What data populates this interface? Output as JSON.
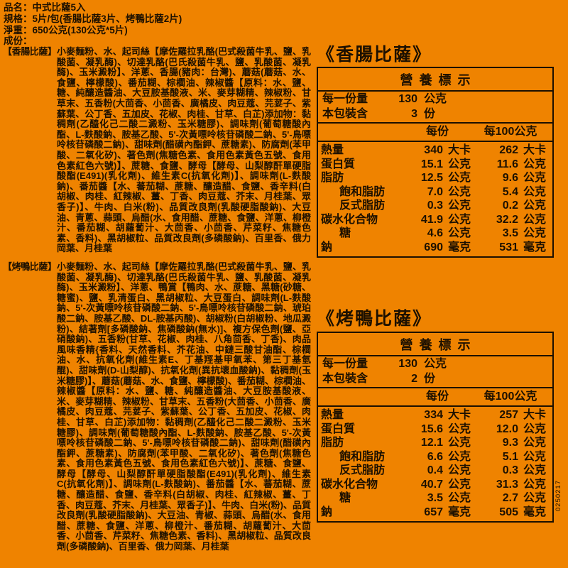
{
  "colors": {
    "background": "#EF8300",
    "ink": "#1C1000"
  },
  "header": {
    "product": "品名：中式比薩5入",
    "spec": "規格：5片/包(香腸比薩3片、烤鴨比薩2片)",
    "net_weight": "淨重：650公克(130公克*5片)",
    "ingredients_heading": "成份："
  },
  "ingredients": [
    {
      "name": "【香腸比薩】",
      "text": "小麥麵粉、水、起司絲【摩佐羅拉乳酪(巴式殺菌牛乳、鹽、乳酸菌、凝乳酶)、切達乳酪(巴氏殺菌牛乳、鹽、乳酸菌、凝乳酶)、玉米澱粉】、洋蔥、香腸(豬肉：台灣)、蘑菇(蘑菇、水、食鹽、檸檬酸)、番茄糊、棕櫚油、辣椒醬【原料：水、鹽、糖、純釀造醬油、大豆胺基酸液、米、麥芽糊精、辣椒粉、甘草末、五香粉(大茴香、小茴香、廣橘皮、肉豆蔻、芫荽子、紫蘇葉、公丁香、五加皮、花椒、肉桂、甘草、白芷)添加物：黏稠劑(乙醯化己二酸二澱粉、玉米糖膠)、調味劑(葡萄糖酸內酯、L-麩酸鈉、胺基乙酸、5'-次黃嘌呤核苷磷酸二鈉、5'-鳥嘌呤核苷磷酸二鈉)、甜味劑(醋磺內酯鉀、蔗糖素)、防腐劑(苯甲酸、二氧化矽)、著色劑(焦糖色素、食用色素黃色五號、食用色素紅色六號)】、蔗糖、食鹽、酵母【酵母、山梨醇酐單硬脂酸酯(E491)(乳化劑)、維生素C(抗氧化劑)】、調味劑(L-麩酸鈉)、番茄醬【水、蕃茄糊、蔗糖、釀造醋、食鹽、香辛料(白胡椒、肉桂、紅辣椒、薑、丁香、肉豆蔻、芥末、月桂葉、眾香子)】、牛肉、白米(粉)、品質改良劑(乳酸硬脂酸鈉)、大豆油、青蔥、蒜頭、烏醋(水、食用醋、蔗糖、食鹽、洋蔥、柳橙汁、番茄糊、胡蘿蔔汁、大茴香、小茴香、芹菜籽、焦糖色素、香料)、黑胡椒粒、品質改良劑(多磷酸鈉)、百里香、俄力岡葉、月桂葉"
    },
    {
      "name": "【烤鴨比薩】",
      "text": "小麥麵粉、水、起司絲【摩佐羅拉乳酪(巴式殺菌牛乳、鹽、乳酸菌、凝乳酶)、切達乳酪(巴氏殺菌牛乳、鹽、乳酸菌、凝乳酶)、玉米澱粉】、洋蔥、鴨賞【鴨肉、水、蔗糖、黑糖(砂糖、糖蜜)、鹽、乳清蛋白、黑胡椒粒、大豆蛋白、調味劑(L-麩酸鈉、5'-次黃嘌呤核苷磷酸二鈉、5'-鳥嘌呤核苷磷酸二鈉、琥珀酸二鈉、胺基乙酸、DL-胺基丙酸)、胡椒粉(白胡椒粉、地瓜澱粉)、結著劑[多磷酸鈉、焦磷酸鈉(無水)]、複方保色劑(鹽、亞硝酸鈉)、五香粉(甘草、花椒、肉桂、八角茴香、丁香)、肉品風味香精{香料、天然香料、芥花油、中鏈三酸甘油酯、棕櫚油、水、抗氧化劑(維生素E、丁基羥基甲氧苯、第三丁基氫醌)、甜味劑(D-山梨醇)、抗氧化劑(異抗壞血酸鈉)、黏稠劑(玉米糖膠)】、蘑菇(蘑菇、水、食鹽、檸檬酸)、番茄糊、棕櫚油、辣椒醬【原料：水、鹽、糖、純釀造醬油、大豆胺基酸液、米、麥芽糊精、辣椒粉、甘草末、五香粉(大茴香、小茴香、廣橘皮、肉豆蔻、芫荽子、紫蘇葉、公丁香、五加皮、花椒、肉桂、甘草、白芷)添加物：黏稠劑(乙醯化己二酸二澱粉、玉米糖膠)、調味劑(葡萄糖酸內酯、L-麩酸鈉、胺基乙酸、5'-次黃嘌呤核苷磷酸二鈉、5'-鳥嘌呤核苷磷酸二鈉)、甜味劑(醋磺內酯鉀、蔗糖素)、防腐劑(苯甲酸、二氧化矽)、著色劑(焦糖色素、食用色素黃色五號、食用色素紅色六號)】、蔗糖、食鹽、酵母【酵母、山梨醇酐單硬脂酸酯(E491)(乳化劑)、維生素C(抗氧化劑)】、調味劑(L-麩酸鈉)、番茄醬【水、蕃茄糊、蔗糖、釀造醋、食鹽、香辛料(白胡椒、肉桂、紅辣椒、薑、丁香、肉豆蔻、芥末、月桂葉、眾香子)】、牛肉、白米(粉)、品質改良劑(乳酸硬脂酸鈉)、大豆油、青椒、蒜頭、烏醋(水、食用醋、蔗糖、食鹽、洋蔥、柳橙汁、番茄糊、胡蘿蔔汁、大茴香、小茴香、芹菜籽、焦糖色素、香料)、黑胡椒粒、品質改良劑(多磷酸鈉)、百里香、俄力岡葉、月桂葉"
    }
  ],
  "nutrition_tables": [
    {
      "title": "《香腸比薩》",
      "heading": "營養標示",
      "serving_label": "每一份量",
      "serving_value": "130",
      "serving_unit": "公克",
      "pack_label": "本包裝含",
      "pack_value": "3",
      "pack_unit": "份",
      "col_per_serving": "每份",
      "col_per_100g": "每100公克",
      "rows": [
        {
          "label": "熱量",
          "indent": false,
          "v1": "340",
          "u1": "大卡",
          "v2": "262",
          "u2": "大卡"
        },
        {
          "label": "蛋白質",
          "indent": false,
          "v1": "15.1",
          "u1": "公克",
          "v2": "11.6",
          "u2": "公克"
        },
        {
          "label": "脂肪",
          "indent": false,
          "v1": "12.5",
          "u1": "公克",
          "v2": "9.6",
          "u2": "公克"
        },
        {
          "label": "飽和脂肪",
          "indent": true,
          "v1": "7.0",
          "u1": "公克",
          "v2": "5.4",
          "u2": "公克"
        },
        {
          "label": "反式脂肪",
          "indent": true,
          "v1": "0.3",
          "u1": "公克",
          "v2": "0.2",
          "u2": "公克"
        },
        {
          "label": "碳水化合物",
          "indent": false,
          "v1": "41.9",
          "u1": "公克",
          "v2": "32.2",
          "u2": "公克"
        },
        {
          "label": "糖",
          "indent": true,
          "v1": "4.6",
          "u1": "公克",
          "v2": "3.5",
          "u2": "公克"
        },
        {
          "label": "鈉",
          "indent": false,
          "v1": "690",
          "u1": "毫克",
          "v2": "531",
          "u2": "毫克"
        }
      ]
    },
    {
      "title": "《烤鴨比薩》",
      "heading": "營養標示",
      "serving_label": "每一份量",
      "serving_value": "130",
      "serving_unit": "公克",
      "pack_label": "本包裝含",
      "pack_value": "2",
      "pack_unit": "份",
      "col_per_serving": "每份",
      "col_per_100g": "每100公克",
      "rows": [
        {
          "label": "熱量",
          "indent": false,
          "v1": "334",
          "u1": "大卡",
          "v2": "257",
          "u2": "大卡"
        },
        {
          "label": "蛋白質",
          "indent": false,
          "v1": "15.6",
          "u1": "公克",
          "v2": "12.0",
          "u2": "公克"
        },
        {
          "label": "脂肪",
          "indent": false,
          "v1": "12.1",
          "u1": "公克",
          "v2": "9.3",
          "u2": "公克"
        },
        {
          "label": "飽和脂肪",
          "indent": true,
          "v1": "6.6",
          "u1": "公克",
          "v2": "5.1",
          "u2": "公克"
        },
        {
          "label": "反式脂肪",
          "indent": true,
          "v1": "0.4",
          "u1": "公克",
          "v2": "0.3",
          "u2": "公克"
        },
        {
          "label": "碳水化合物",
          "indent": false,
          "v1": "40.7",
          "u1": "公克",
          "v2": "31.3",
          "u2": "公克"
        },
        {
          "label": "糖",
          "indent": true,
          "v1": "3.5",
          "u1": "公克",
          "v2": "2.7",
          "u2": "公克"
        },
        {
          "label": "鈉",
          "indent": false,
          "v1": "657",
          "u1": "毫克",
          "v2": "505",
          "u2": "毫克"
        }
      ]
    }
  ],
  "side_code": "0250217"
}
